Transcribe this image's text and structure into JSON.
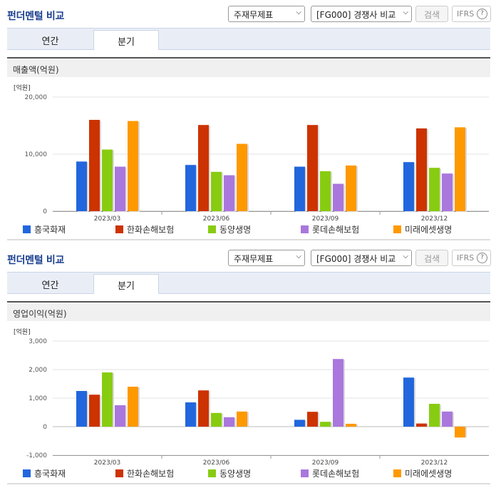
{
  "colors": {
    "series": [
      "#2266dd",
      "#cc3300",
      "#88cc11",
      "#aa77dd",
      "#ff9900"
    ]
  },
  "panels": [
    {
      "header": {
        "title": "펀더멘털 비교",
        "select1": "주재무제표",
        "select2": "[FG000] 경쟁사 비교",
        "search_label": "검색",
        "ifrs_label": "IFRS",
        "help_label": "?"
      },
      "tabs": [
        {
          "label": "연간"
        },
        {
          "label": "분기"
        }
      ],
      "active_tab": "분기",
      "metric_label": "매출액(억원)",
      "unit_label": "[억원]",
      "legend": [
        "흥국화재",
        "한화손해보험",
        "동양생명",
        "롯데손해보험",
        "미래에셋생명"
      ],
      "chart_data": {
        "type": "bar",
        "categories": [
          "2023/03",
          "2023/06",
          "2023/09",
          "2023/12"
        ],
        "series": [
          {
            "name": "흥국화재",
            "values": [
              8700,
              8100,
              7800,
              8600
            ]
          },
          {
            "name": "한화손해보험",
            "values": [
              16000,
              15100,
              15100,
              14500
            ]
          },
          {
            "name": "동양생명",
            "values": [
              10800,
              6900,
              7000,
              7600
            ]
          },
          {
            "name": "롯데손해보험",
            "values": [
              7800,
              6300,
              4800,
              6600
            ]
          },
          {
            "name": "미래에셋생명",
            "values": [
              15800,
              11800,
              8000,
              14700
            ]
          }
        ],
        "yticks": [
          0,
          10000,
          20000
        ],
        "ytick_labels": [
          "0",
          "10,000",
          "20,000"
        ],
        "ylim": [
          0,
          20000
        ],
        "ylabel": "[억원]",
        "grid": true,
        "legend_position": "bottom"
      }
    },
    {
      "header": {
        "title": "펀더멘털 비교",
        "select1": "주재무제표",
        "select2": "[FG000] 경쟁사 비교",
        "search_label": "검색",
        "ifrs_label": "IFRS",
        "help_label": "?"
      },
      "tabs": [
        {
          "label": "연간"
        },
        {
          "label": "분기"
        }
      ],
      "active_tab": "분기",
      "metric_label": "영업이익(억원)",
      "unit_label": "[억원]",
      "legend": [
        "흥국화재",
        "한화손해보험",
        "동양생명",
        "롯데손해보험",
        "미래에셋생명"
      ],
      "chart_data": {
        "type": "bar",
        "categories": [
          "2023/03",
          "2023/06",
          "2023/09",
          "2023/12"
        ],
        "series": [
          {
            "name": "흥국화재",
            "values": [
              1250,
              850,
              240,
              1720
            ]
          },
          {
            "name": "한화손해보험",
            "values": [
              1120,
              1270,
              520,
              110
            ]
          },
          {
            "name": "동양생명",
            "values": [
              1900,
              480,
              170,
              800
            ]
          },
          {
            "name": "롯데손해보험",
            "values": [
              750,
              330,
              2370,
              530
            ]
          },
          {
            "name": "미래에셋생명",
            "values": [
              1400,
              530,
              100,
              -380
            ]
          }
        ],
        "yticks": [
          -1000,
          0,
          1000,
          2000,
          3000
        ],
        "ytick_labels": [
          "-1,000",
          "0",
          "1,000",
          "2,000",
          "3,000"
        ],
        "ylim": [
          -1000,
          3000
        ],
        "ylabel": "[억원]",
        "grid": true,
        "legend_position": "bottom"
      }
    }
  ]
}
